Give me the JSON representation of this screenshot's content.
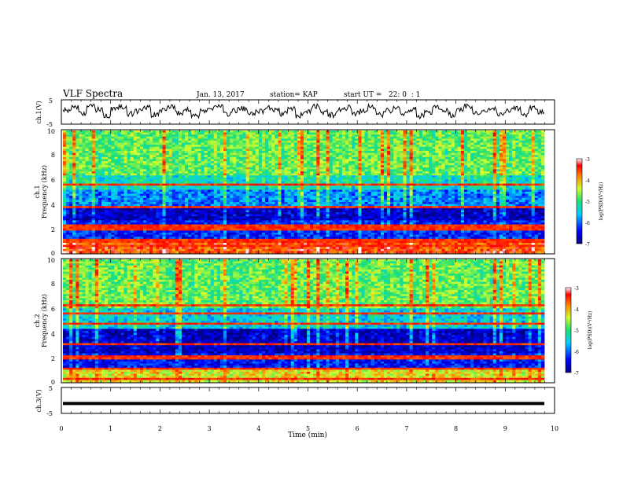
{
  "header": {
    "title": "VLF Spectra",
    "date": "Jan. 13, 2017",
    "station": "station= KAP",
    "start": "start UT =   22: 0  : 1"
  },
  "chart_data": [
    {
      "type": "line",
      "panel": "ch1-waveform",
      "ylabel": "ch.1(V)",
      "ylim": [
        -5,
        5
      ],
      "yticks": [
        "5",
        "-5"
      ],
      "xlim": [
        0,
        10
      ],
      "description_series": "noisy voltage trace fluctuating roughly between -3 and +3 V",
      "series": [
        {
          "values": [
            0.5,
            1.8,
            -0.6,
            2.2,
            0.9,
            -1.4,
            1.6,
            2.4,
            -0.8,
            0.4,
            1.9,
            -1.2,
            0.7,
            2.1,
            -0.4,
            1.3,
            -1.6,
            0.2,
            1.7,
            2.3,
            -0.9,
            0.8,
            1.5,
            -1.1,
            0.3,
            2.0,
            1.1,
            -0.7,
            1.4,
            -1.5,
            0.6,
            2.2,
            0.1,
            -1.3,
            1.2,
            1.8,
            -0.5,
            0.9,
            2.1,
            -1.0,
            0.4,
            1.6,
            -0.8,
            1.0,
            -1.7,
            -0.3,
            1.9,
            0.7,
            -1.2,
            1.3,
            2.4,
            -0.6,
            0.2,
            1.7,
            -1.4,
            0.8,
            1.2,
            -0.9,
            1.5,
            0.3
          ]
        }
      ]
    },
    {
      "type": "heatmap",
      "panel": "ch1-spectrogram",
      "ylabel_top": "ch.1",
      "ylabel": "Frequency (kHz)",
      "ylim": [
        0,
        10
      ],
      "yticks": [
        "0",
        "2",
        "4",
        "6",
        "8",
        "10"
      ],
      "xlim": [
        0,
        10
      ],
      "colorbar": {
        "label": "log(PSD)(V²/Hz)",
        "range": [
          -7,
          -3
        ],
        "ticks": [
          "-3",
          "-4",
          "-5",
          "-6",
          "-7"
        ]
      },
      "bands_khz": [
        {
          "from": 0,
          "to": 1.2,
          "level": -3.6
        },
        {
          "from": 1.2,
          "to": 2.6,
          "level": -6.3
        },
        {
          "from": 2.6,
          "to": 3.9,
          "level": -6.7
        },
        {
          "from": 3.9,
          "to": 5.2,
          "level": -5.9
        },
        {
          "from": 5.2,
          "to": 6.4,
          "level": -5.3
        },
        {
          "from": 6.4,
          "to": 10,
          "level": -4.8
        }
      ],
      "lines_khz": [
        0.6,
        1.0,
        2.0,
        2.3,
        3.8,
        5.6
      ]
    },
    {
      "type": "heatmap",
      "panel": "ch2-spectrogram",
      "ylabel_top": "ch.2",
      "ylabel": "Frequency (kHz)",
      "ylim": [
        0,
        10
      ],
      "yticks": [
        "0",
        "2",
        "4",
        "6",
        "8",
        "10"
      ],
      "xlim": [
        0,
        10
      ],
      "colorbar": {
        "label": "log(PSD)(V²/Hz)",
        "range": [
          -7,
          -3
        ],
        "ticks": [
          "-3",
          "-4",
          "-5",
          "-6",
          "-7"
        ]
      },
      "bands_khz": [
        {
          "from": 0,
          "to": 1.2,
          "level": -4.3
        },
        {
          "from": 1.2,
          "to": 2.4,
          "level": -6.4
        },
        {
          "from": 2.4,
          "to": 4.4,
          "level": -6.7
        },
        {
          "from": 4.4,
          "to": 6.0,
          "level": -5.5
        },
        {
          "from": 6.0,
          "to": 10,
          "level": -4.8
        }
      ],
      "lines_khz": [
        0.3,
        1.1,
        2.0,
        3.1,
        4.8,
        5.6,
        6.2
      ]
    },
    {
      "type": "line",
      "panel": "ch3-waveform",
      "ylabel": "ch.3(V)",
      "ylim": [
        -5,
        5
      ],
      "yticks": [
        "5",
        "-5"
      ],
      "xlim": [
        0,
        10
      ],
      "series": [
        {
          "values": [
            -1.2,
            -1.2
          ]
        }
      ]
    }
  ],
  "xaxis": {
    "label": "Time (min)",
    "ticks": [
      "0",
      "1",
      "2",
      "3",
      "4",
      "5",
      "6",
      "7",
      "8",
      "9",
      "10"
    ]
  }
}
